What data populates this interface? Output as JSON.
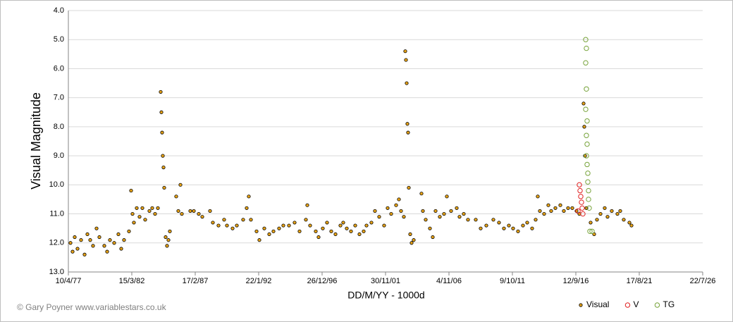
{
  "chart_data": {
    "type": "scatter",
    "y_label": "Visual Magnitude",
    "x_label": "DD/M/YY - 1000d",
    "credit": "© Gary Poyner www.variablestars.co.uk",
    "y_inverted": true,
    "grid": true,
    "legend": "bottom-right",
    "xlim": [
      2443244,
      2461244
    ],
    "xticks": [
      {
        "value": 2443244,
        "label": "10/4/77"
      },
      {
        "value": 2445044,
        "label": "15/3/82"
      },
      {
        "value": 2446844,
        "label": "17/2/87"
      },
      {
        "value": 2448644,
        "label": "22/1/92"
      },
      {
        "value": 2450444,
        "label": "26/12/96"
      },
      {
        "value": 2452244,
        "label": "30/11/01"
      },
      {
        "value": 2454044,
        "label": "4/11/06"
      },
      {
        "value": 2455844,
        "label": "9/10/11"
      },
      {
        "value": 2457644,
        "label": "12/9/16"
      },
      {
        "value": 2459444,
        "label": "17/8/21"
      },
      {
        "value": 2461244,
        "label": "22/7/26"
      }
    ],
    "ylim": [
      4,
      13
    ],
    "yticks": [
      {
        "value": 4,
        "label": "4.0"
      },
      {
        "value": 5,
        "label": "5.0"
      },
      {
        "value": 6,
        "label": "6.0"
      },
      {
        "value": 7,
        "label": "7.0"
      },
      {
        "value": 8,
        "label": "8.0"
      },
      {
        "value": 9,
        "label": "9.0"
      },
      {
        "value": 10,
        "label": "10.0"
      },
      {
        "value": 11,
        "label": "11.0"
      },
      {
        "value": 12,
        "label": "12.0"
      },
      {
        "value": 13,
        "label": "13.0"
      }
    ],
    "series": [
      {
        "name": "Visual",
        "color": "#000000",
        "fill": "#e8a317",
        "x": [
          2443304,
          2443364,
          2443424,
          2443504,
          2443604,
          2443704,
          2443784,
          2443864,
          2443944,
          2444044,
          2444124,
          2444264,
          2444344,
          2444424,
          2444544,
          2444664,
          2444744,
          2444824,
          2444964,
          2445024,
          2445064,
          2445104,
          2445184,
          2445264,
          2445344,
          2445424,
          2445544,
          2445624,
          2445704,
          2445784,
          2445864,
          2445884,
          2445904,
          2445924,
          2445944,
          2445964,
          2446004,
          2446044,
          2446084,
          2446124,
          2446304,
          2446364,
          2446424,
          2446464,
          2446704,
          2446804,
          2446944,
          2447044,
          2447264,
          2447344,
          2447504,
          2447664,
          2447744,
          2447904,
          2448024,
          2448204,
          2448304,
          2448364,
          2448424,
          2448584,
          2448664,
          2448804,
          2448944,
          2449064,
          2449224,
          2449344,
          2449504,
          2449664,
          2449804,
          2449984,
          2450024,
          2450104,
          2450264,
          2450344,
          2450464,
          2450584,
          2450704,
          2450824,
          2450964,
          2451044,
          2451144,
          2451264,
          2451384,
          2451504,
          2451624,
          2451704,
          2451844,
          2451944,
          2452064,
          2452204,
          2452304,
          2452404,
          2452544,
          2452624,
          2452684,
          2452764,
          2452804,
          2452824,
          2452844,
          2452864,
          2452884,
          2452904,
          2452944,
          2452984,
          2453044,
          2453264,
          2453304,
          2453384,
          2453504,
          2453584,
          2453664,
          2453784,
          2453904,
          2453984,
          2454104,
          2454264,
          2454344,
          2454464,
          2454584,
          2454804,
          2454944,
          2455104,
          2455304,
          2455464,
          2455604,
          2455744,
          2455864,
          2456004,
          2456144,
          2456264,
          2456404,
          2456504,
          2456564,
          2456624,
          2456744,
          2456864,
          2456944,
          2457064,
          2457204,
          2457304,
          2457424,
          2457544,
          2457664,
          2457744,
          2457864,
          2457884,
          2457904,
          2457944,
          2458064,
          2458164,
          2458244,
          2458344,
          2458464,
          2458544,
          2458664,
          2458824,
          2458904,
          2459004,
          2459164,
          2459224
        ],
        "values": [
          12.0,
          12.3,
          11.8,
          12.2,
          11.9,
          12.4,
          11.7,
          11.9,
          12.1,
          11.5,
          11.8,
          12.1,
          12.3,
          11.9,
          12.0,
          11.7,
          12.2,
          11.9,
          11.6,
          10.2,
          11.0,
          11.3,
          10.8,
          11.1,
          10.8,
          11.2,
          10.9,
          10.8,
          11.0,
          10.8,
          6.8,
          7.5,
          8.2,
          9.0,
          9.4,
          10.1,
          11.8,
          12.1,
          11.9,
          11.6,
          10.4,
          10.9,
          10.0,
          11.0,
          10.9,
          10.9,
          11.0,
          11.1,
          10.9,
          11.3,
          11.4,
          11.2,
          11.4,
          11.5,
          11.4,
          11.2,
          10.8,
          10.4,
          11.2,
          11.6,
          11.9,
          11.5,
          11.7,
          11.6,
          11.5,
          11.4,
          11.4,
          11.3,
          11.6,
          11.2,
          10.7,
          11.4,
          11.6,
          11.8,
          11.5,
          11.3,
          11.6,
          11.7,
          11.4,
          11.3,
          11.5,
          11.6,
          11.4,
          11.7,
          11.6,
          11.4,
          11.3,
          10.9,
          11.1,
          11.4,
          10.8,
          11.0,
          10.7,
          10.5,
          10.9,
          11.1,
          5.4,
          5.7,
          6.5,
          7.9,
          8.2,
          10.1,
          11.7,
          12.0,
          11.9,
          10.3,
          10.9,
          11.2,
          11.5,
          11.8,
          10.9,
          11.1,
          11.0,
          10.4,
          10.9,
          10.8,
          11.1,
          11.0,
          11.2,
          11.2,
          11.5,
          11.4,
          11.2,
          11.3,
          11.5,
          11.4,
          11.5,
          11.6,
          11.4,
          11.3,
          11.5,
          11.2,
          10.4,
          10.9,
          11.0,
          10.7,
          10.9,
          10.8,
          10.7,
          10.9,
          10.8,
          10.8,
          10.9,
          11.0,
          7.2,
          8.0,
          9.0,
          10.8,
          11.3,
          11.7,
          11.2,
          11.0,
          10.8,
          11.1,
          10.9,
          11.0,
          10.9,
          11.2,
          11.3,
          11.4
        ]
      },
      {
        "name": "V",
        "color": "#e02020",
        "fill": "none",
        "x": [
          2457704,
          2457744,
          2457764,
          2457784,
          2457804,
          2457824,
          2457844
        ],
        "values": [
          10.9,
          10.0,
          10.2,
          10.4,
          10.6,
          10.8,
          11.0
        ]
      },
      {
        "name": "TG",
        "color": "#77a33a",
        "fill": "none",
        "x": [
          2457924,
          2457944,
          2457924,
          2457944,
          2457924,
          2457964,
          2457944,
          2457964,
          2457944,
          2457964,
          2457984,
          2457984,
          2458004,
          2458004,
          2458024,
          2458044,
          2458104
        ],
        "values": [
          5.0,
          5.3,
          5.8,
          6.7,
          7.4,
          7.8,
          8.3,
          8.6,
          9.0,
          9.3,
          9.6,
          9.9,
          10.2,
          10.5,
          10.8,
          11.6,
          11.6
        ]
      }
    ]
  }
}
